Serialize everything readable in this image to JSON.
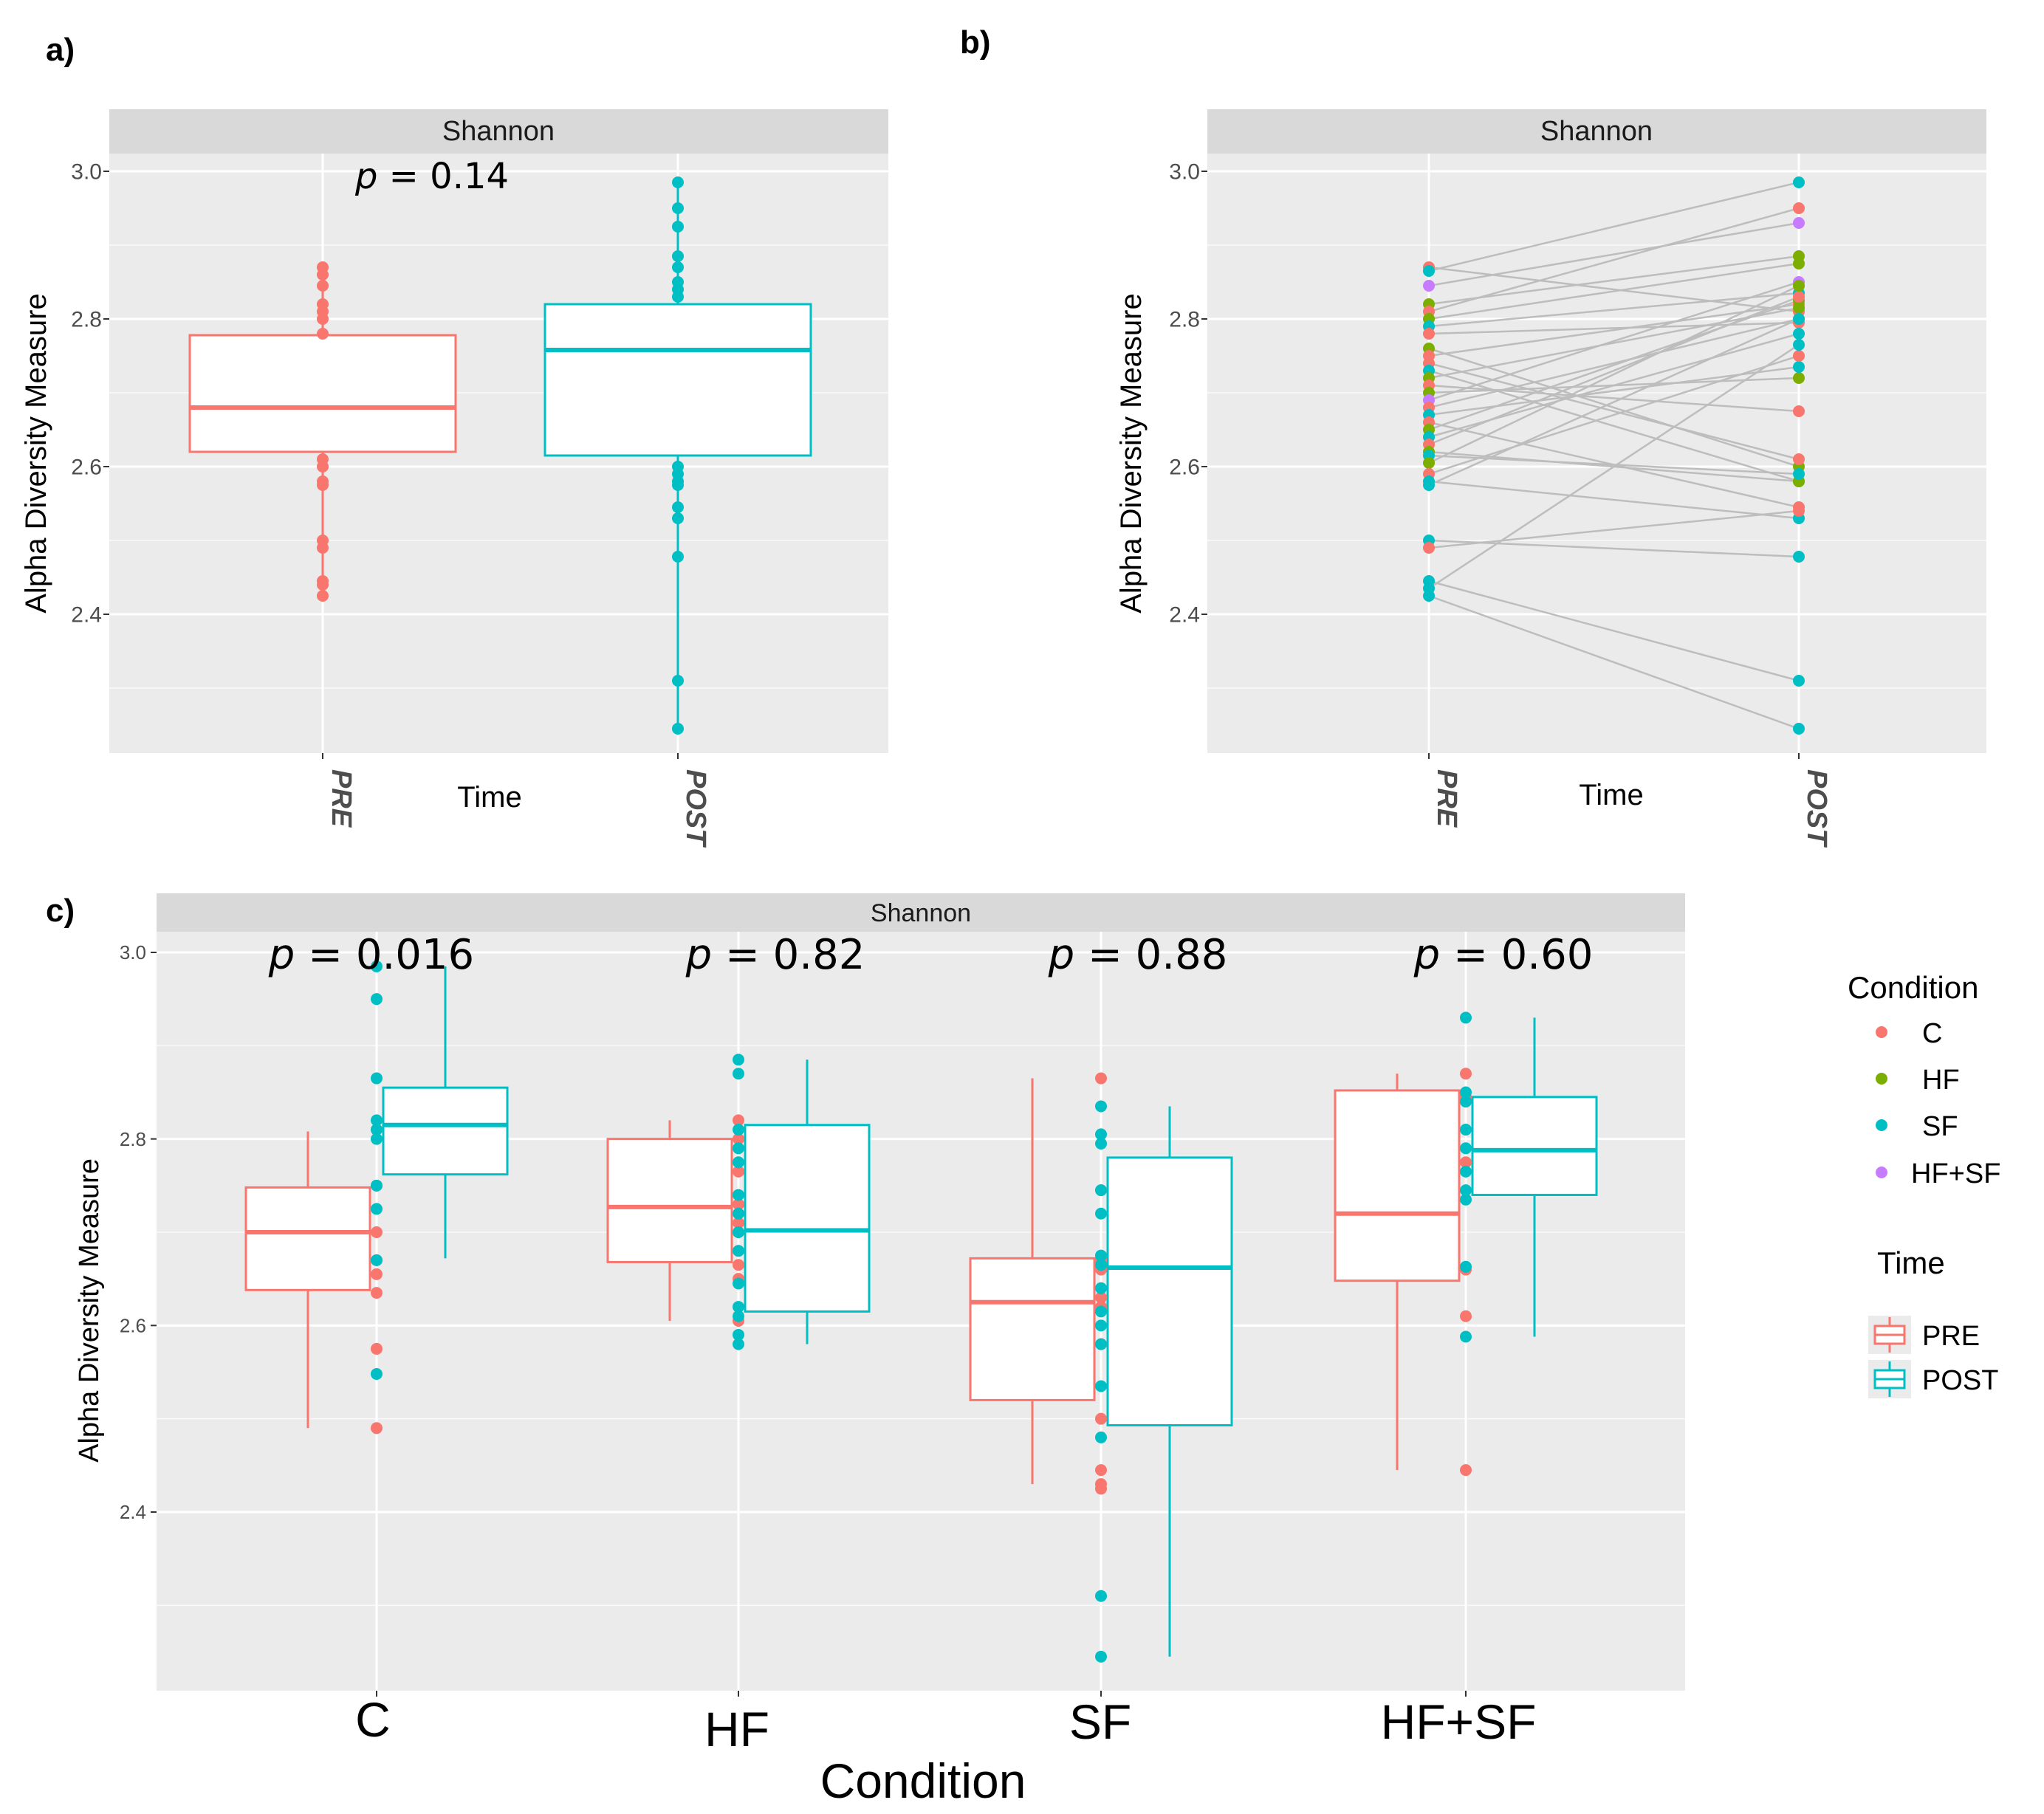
{
  "colors": {
    "pre": "#F8766D",
    "post": "#00BFC4",
    "C": "#F8766D",
    "HF": "#7CAE00",
    "SF": "#00BFC4",
    "HFSF": "#C77CFF",
    "panel_bg": "#EBEBEB",
    "strip_bg": "#D9D9D9",
    "grid": "#FFFFFF",
    "line_gray": "#BDBDBD"
  },
  "chart_data": [
    {
      "panel": "a)",
      "type": "box",
      "strip": "Shannon",
      "xlabel": "Time",
      "ylabel": "Alpha Diversity Measure",
      "ylim": [
        2.2,
        3.02
      ],
      "yticks": [
        2.4,
        2.6,
        2.8,
        3.0
      ],
      "ytick_labels": [
        "2.4",
        "2.6",
        "2.8",
        "3.0"
      ],
      "categories": [
        "PRE",
        "POST"
      ],
      "p_value": {
        "prefix": "p",
        "text": " = 0.14"
      },
      "boxes": [
        {
          "name": "PRE",
          "min": 2.425,
          "q1": 2.62,
          "median": 2.68,
          "q3": 2.778,
          "max": 2.87,
          "points": [
            2.87,
            2.86,
            2.845,
            2.82,
            2.81,
            2.8,
            2.78,
            2.61,
            2.6,
            2.58,
            2.575,
            2.5,
            2.49,
            2.445,
            2.44,
            2.425
          ]
        },
        {
          "name": "POST",
          "min": 2.245,
          "q1": 2.615,
          "median": 2.758,
          "q3": 2.82,
          "max": 2.985,
          "points": [
            2.985,
            2.95,
            2.925,
            2.885,
            2.87,
            2.85,
            2.84,
            2.83,
            2.6,
            2.59,
            2.58,
            2.575,
            2.545,
            2.53,
            2.478,
            2.31,
            2.245
          ]
        }
      ]
    },
    {
      "panel": "b)",
      "type": "paired-line",
      "strip": "Shannon",
      "xlabel": "Time",
      "ylabel": "Alpha Diversity Measure",
      "ylim": [
        2.2,
        3.02
      ],
      "yticks": [
        2.4,
        2.6,
        2.8,
        3.0
      ],
      "ytick_labels": [
        "2.4",
        "2.6",
        "2.8",
        "3.0"
      ],
      "categories": [
        "PRE",
        "POST"
      ],
      "pairs": [
        {
          "g": "C",
          "pre": 2.87,
          "post": 2.81
        },
        {
          "g": "SF",
          "pre": 2.865,
          "post": 2.985
        },
        {
          "g": "HFSF",
          "pre": 2.845,
          "post": 2.93
        },
        {
          "g": "HF",
          "pre": 2.82,
          "post": 2.885
        },
        {
          "g": "C",
          "pre": 2.81,
          "post": 2.95
        },
        {
          "g": "HF",
          "pre": 2.8,
          "post": 2.875
        },
        {
          "g": "SF",
          "pre": 2.79,
          "post": 2.835
        },
        {
          "g": "C",
          "pre": 2.78,
          "post": 2.795
        },
        {
          "g": "HF",
          "pre": 2.76,
          "post": 2.6
        },
        {
          "g": "C",
          "pre": 2.75,
          "post": 2.82
        },
        {
          "g": "C",
          "pre": 2.74,
          "post": 2.61
        },
        {
          "g": "SF",
          "pre": 2.73,
          "post": 2.58
        },
        {
          "g": "HF",
          "pre": 2.72,
          "post": 2.815
        },
        {
          "g": "C",
          "pre": 2.71,
          "post": 2.675
        },
        {
          "g": "HF",
          "pre": 2.7,
          "post": 2.72
        },
        {
          "g": "HFSF",
          "pre": 2.69,
          "post": 2.85
        },
        {
          "g": "C",
          "pre": 2.68,
          "post": 2.8
        },
        {
          "g": "SF",
          "pre": 2.67,
          "post": 2.735
        },
        {
          "g": "C",
          "pre": 2.66,
          "post": 2.545
        },
        {
          "g": "HF",
          "pre": 2.65,
          "post": 2.825
        },
        {
          "g": "SF",
          "pre": 2.64,
          "post": 2.78
        },
        {
          "g": "C",
          "pre": 2.63,
          "post": 2.83
        },
        {
          "g": "HF",
          "pre": 2.62,
          "post": 2.58
        },
        {
          "g": "SF",
          "pre": 2.615,
          "post": 2.59
        },
        {
          "g": "HF",
          "pre": 2.605,
          "post": 2.845
        },
        {
          "g": "C",
          "pre": 2.59,
          "post": 2.75
        },
        {
          "g": "SF",
          "pre": 2.58,
          "post": 2.53
        },
        {
          "g": "SF",
          "pre": 2.575,
          "post": 2.8
        },
        {
          "g": "SF",
          "pre": 2.5,
          "post": 2.478
        },
        {
          "g": "C",
          "pre": 2.49,
          "post": 2.54
        },
        {
          "g": "SF",
          "pre": 2.445,
          "post": 2.31
        },
        {
          "g": "SF",
          "pre": 2.435,
          "post": 2.765
        },
        {
          "g": "SF",
          "pre": 2.425,
          "post": 2.245
        }
      ]
    },
    {
      "panel": "c)",
      "type": "grouped-box",
      "strip": "Shannon",
      "xlabel": "Condition",
      "ylabel": "Alpha Diversity Measure",
      "ylim": [
        2.2,
        3.02
      ],
      "yticks": [
        2.4,
        2.6,
        2.8,
        3.0
      ],
      "ytick_labels": [
        "2.4",
        "2.6",
        "2.8",
        "3.0"
      ],
      "categories": [
        "C",
        "HF",
        "SF",
        "HF+SF"
      ],
      "p_values": [
        {
          "prefix": "p",
          "text": " = 0.016"
        },
        {
          "prefix": "p",
          "text": " = 0.82"
        },
        {
          "prefix": "p",
          "text": " = 0.88"
        },
        {
          "prefix": "p",
          "text": " = 0.60"
        }
      ],
      "groups": [
        {
          "category": "C",
          "pre": {
            "min": 2.49,
            "q1": 2.638,
            "median": 2.7,
            "q3": 2.748,
            "max": 2.808
          },
          "post": {
            "min": 2.672,
            "q1": 2.762,
            "median": 2.815,
            "q3": 2.855,
            "max": 2.985
          },
          "points_pre": [
            2.81,
            2.75,
            2.7,
            2.67,
            2.655,
            2.635,
            2.575,
            2.49
          ],
          "points_post": [
            2.985,
            2.95,
            2.865,
            2.82,
            2.81,
            2.8,
            2.75,
            2.725,
            2.67,
            2.548
          ]
        },
        {
          "category": "HF",
          "pre": {
            "min": 2.605,
            "q1": 2.668,
            "median": 2.727,
            "q3": 2.8,
            "max": 2.82
          },
          "post": {
            "min": 2.58,
            "q1": 2.615,
            "median": 2.702,
            "q3": 2.815,
            "max": 2.885
          },
          "points_pre": [
            2.82,
            2.8,
            2.765,
            2.73,
            2.71,
            2.7,
            2.68,
            2.665,
            2.65,
            2.605
          ],
          "points_post": [
            2.885,
            2.87,
            2.81,
            2.79,
            2.775,
            2.74,
            2.72,
            2.7,
            2.68,
            2.645,
            2.62,
            2.61,
            2.59,
            2.58
          ]
        },
        {
          "category": "SF",
          "pre": {
            "min": 2.43,
            "q1": 2.52,
            "median": 2.625,
            "q3": 2.672,
            "max": 2.865
          },
          "post": {
            "min": 2.245,
            "q1": 2.493,
            "median": 2.662,
            "q3": 2.78,
            "max": 2.835
          },
          "points_pre": [
            2.865,
            2.745,
            2.67,
            2.66,
            2.63,
            2.62,
            2.58,
            2.5,
            2.445,
            2.43,
            2.425
          ],
          "points_post": [
            2.835,
            2.805,
            2.795,
            2.745,
            2.72,
            2.675,
            2.665,
            2.64,
            2.615,
            2.6,
            2.58,
            2.535,
            2.48,
            2.31,
            2.245
          ]
        },
        {
          "category": "HF+SF",
          "pre": {
            "min": 2.445,
            "q1": 2.648,
            "median": 2.72,
            "q3": 2.852,
            "max": 2.87
          },
          "post": {
            "min": 2.588,
            "q1": 2.74,
            "median": 2.788,
            "q3": 2.845,
            "max": 2.93
          },
          "points_pre": [
            2.87,
            2.845,
            2.775,
            2.66,
            2.61,
            2.445
          ],
          "points_post": [
            2.93,
            2.85,
            2.84,
            2.81,
            2.79,
            2.765,
            2.745,
            2.735,
            2.663,
            2.588
          ]
        }
      ]
    }
  ],
  "legend": {
    "condition_title": "Condition",
    "condition_items": [
      {
        "key": "C",
        "label": "C"
      },
      {
        "key": "HF",
        "label": "HF"
      },
      {
        "key": "SF",
        "label": "SF"
      },
      {
        "key": "HFSF",
        "label": "HF+SF"
      }
    ],
    "time_title": "Time",
    "time_items": [
      {
        "key": "pre",
        "label": "PRE"
      },
      {
        "key": "post",
        "label": "POST"
      }
    ]
  }
}
